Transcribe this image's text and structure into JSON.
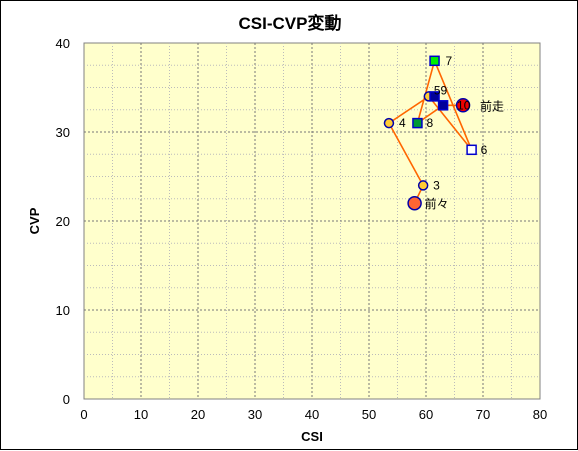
{
  "chart_data": {
    "type": "scatter",
    "title": "CSI-CVP変動",
    "xlabel": "CSI",
    "ylabel": "CVP",
    "xlim": [
      0,
      80
    ],
    "ylim": [
      0,
      40
    ],
    "x_ticks": [
      0,
      10,
      20,
      30,
      40,
      50,
      60,
      70,
      80
    ],
    "y_ticks": [
      0,
      10,
      20,
      30,
      40
    ],
    "grid": true,
    "plot_background": "#ffffcc",
    "line_color": "#ff6600",
    "path_order": [
      "前々",
      "3",
      "4",
      "5",
      "6",
      "7",
      "8",
      "9",
      "前走"
    ],
    "points": [
      {
        "label": "前々",
        "x": 58,
        "y": 22,
        "shape": "circle",
        "size": "large",
        "fill": "#ff6633",
        "stroke": "#0000aa"
      },
      {
        "label": "3",
        "x": 59.5,
        "y": 24,
        "shape": "circle",
        "size": "small",
        "fill": "#ffcc33",
        "stroke": "#0000aa"
      },
      {
        "label": "4",
        "x": 53.5,
        "y": 31,
        "shape": "circle",
        "size": "small",
        "fill": "#ffcc33",
        "stroke": "#0000aa"
      },
      {
        "label": "5",
        "x": 60.5,
        "y": 34,
        "shape": "circle",
        "size": "small",
        "fill": "#ffcc33",
        "stroke": "#0000aa"
      },
      {
        "label": "6",
        "x": 68,
        "y": 28,
        "shape": "square",
        "size": "small",
        "fill": "#ffffff",
        "stroke": "#0000cc"
      },
      {
        "label": "7",
        "x": 61.5,
        "y": 38,
        "shape": "square",
        "size": "small",
        "fill": "#00ee00",
        "stroke": "#0000cc"
      },
      {
        "label": "8",
        "x": 58.5,
        "y": 31,
        "shape": "square",
        "size": "small",
        "fill": "#009933",
        "stroke": "#0000cc"
      },
      {
        "label": "9",
        "x": 63,
        "y": 33,
        "shape": "square",
        "size": "small",
        "fill": "#000099",
        "stroke": "#0000cc"
      },
      {
        "label": "前走",
        "x": 66.5,
        "y": 33,
        "shape": "circle",
        "size": "large",
        "fill": "#ee0000",
        "stroke": "#0000aa"
      },
      {
        "label": "",
        "x": 61.5,
        "y": 34,
        "shape": "square",
        "size": "small",
        "fill": "#000099",
        "stroke": "#0000cc"
      }
    ],
    "label_texts": [
      {
        "text": "前々",
        "for": "前々"
      },
      {
        "text": "3",
        "for": "3"
      },
      {
        "text": "4",
        "for": "4"
      },
      {
        "text": "8",
        "for": "8"
      },
      {
        "text": "6",
        "for": "6"
      },
      {
        "text": "7",
        "for": "7"
      },
      {
        "text": "59",
        "for": "5"
      },
      {
        "text": "10",
        "for": "前走"
      },
      {
        "text": "前走",
        "for": "前走"
      }
    ]
  }
}
